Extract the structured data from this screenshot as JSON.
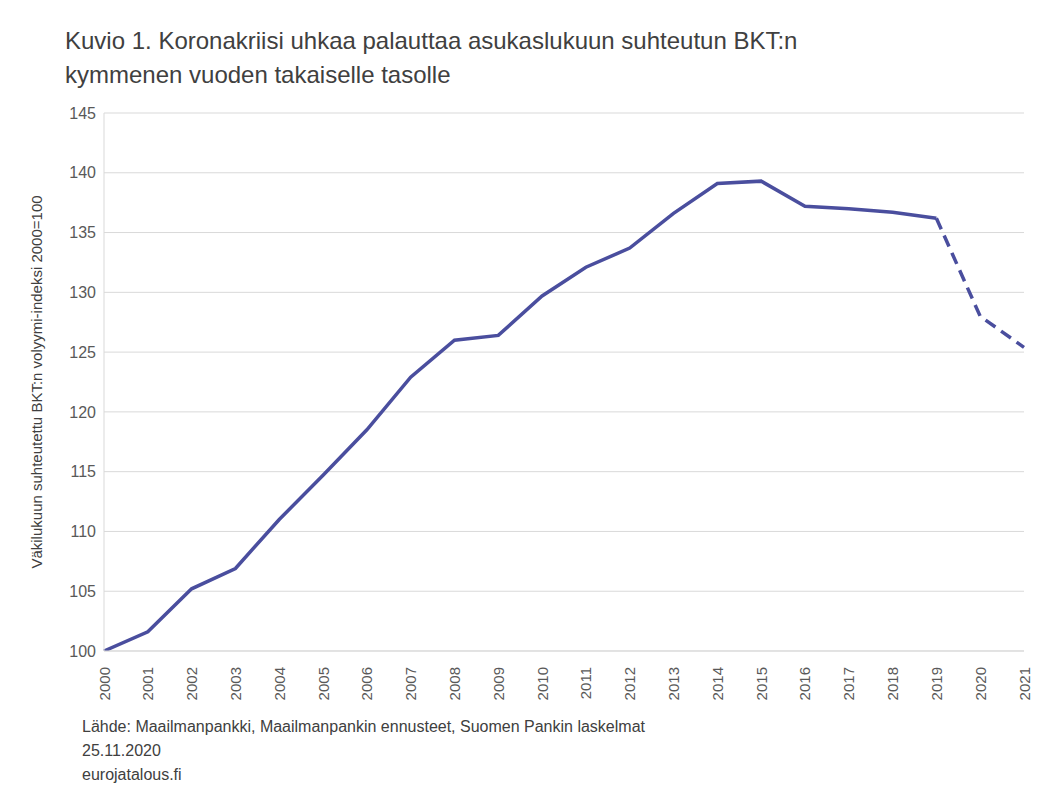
{
  "chart_data": {
    "type": "line",
    "title": "Kuvio 1. Koronakriisi uhkaa palauttaa asukaslukuun suhteutun BKT:n kymmenen vuoden takaiselle tasolle",
    "y_label": "Väkilukuun suhteutettu BKT:n volyymi-indeksi 2000=100",
    "annotations": [
      "Lähde: Maailmanpankki, Maailmanpankin ennusteet, Suomen Pankin laskelmat",
      "25.11.2020",
      "eurojatalous.fi"
    ],
    "categories": [
      "2000",
      "2001",
      "2002",
      "2003",
      "2004",
      "2005",
      "2006",
      "2007",
      "2008",
      "2009",
      "2010",
      "2011",
      "2012",
      "2013",
      "2014",
      "2015",
      "2016",
      "2017",
      "2018",
      "2019",
      "2020",
      "2021"
    ],
    "series": [
      {
        "color": "#4a4e9e",
        "line_style": "solid",
        "values": [
          100,
          101.6,
          105.2,
          106.9,
          111.0,
          114.7,
          118.5,
          122.9,
          126.0,
          126.4,
          129.7,
          132.1,
          133.7,
          136.6,
          139.1,
          139.3,
          137.2,
          137.0,
          136.7,
          136.2,
          null,
          null
        ]
      },
      {
        "color": "#4a4e9e",
        "line_style": "dashed",
        "values": [
          null,
          null,
          null,
          null,
          null,
          null,
          null,
          null,
          null,
          null,
          null,
          null,
          null,
          null,
          null,
          null,
          null,
          null,
          null,
          136.2,
          128.0,
          125.4
        ]
      }
    ],
    "ylim": [
      100,
      145
    ],
    "yticks": [
      100,
      105,
      110,
      115,
      120,
      125,
      130,
      135,
      140,
      145
    ],
    "grid": true
  }
}
